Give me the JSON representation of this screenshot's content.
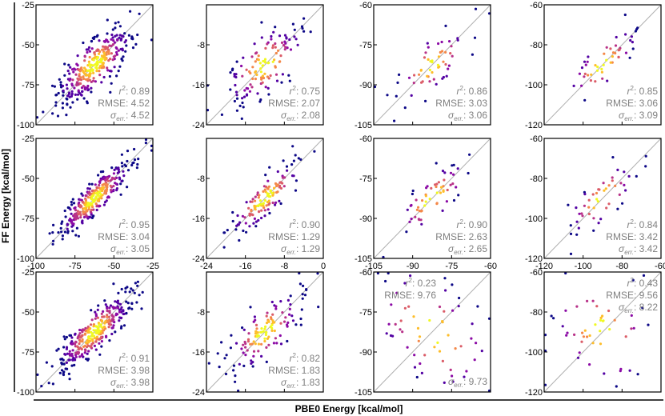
{
  "figure": {
    "ylabel": "FF Energy [kcal/mol]",
    "xlabel": "PBE0 Energy [kcal/mol]"
  },
  "colormap": [
    "#0d0887",
    "#5302a3",
    "#8b0aa5",
    "#b83289",
    "#db5c68",
    "#f48849",
    "#febd2a",
    "#f0f921"
  ],
  "stat_labels": {
    "r2": "r",
    "r2_sup": "2",
    "r2_colon": ":",
    "rmse": "RMSE:",
    "sigma": "σ",
    "sigma_sub": "err.",
    "sigma_colon": ":"
  },
  "chart_data": [
    {
      "type": "scatter",
      "row": 0,
      "col": 0,
      "xlim": [
        -100,
        -25
      ],
      "ylim": [
        -100,
        -25
      ],
      "yticks": [
        "-25",
        "-50",
        "-75",
        "-100"
      ],
      "xticks": [],
      "n": 320,
      "spread": 0.055,
      "stats": {
        "r2": "0.89",
        "rmse": "4.52",
        "sigma": "4.52"
      }
    },
    {
      "type": "scatter",
      "row": 0,
      "col": 1,
      "xlim": [
        -24,
        0
      ],
      "ylim": [
        -24,
        0
      ],
      "yticks": [
        "-8",
        "-16",
        "-24"
      ],
      "xticks": [],
      "n": 130,
      "spread": 0.07,
      "stats": {
        "r2": "0.75",
        "rmse": "2.07",
        "sigma": "2.08"
      }
    },
    {
      "type": "scatter",
      "row": 0,
      "col": 2,
      "xlim": [
        -105,
        -60
      ],
      "ylim": [
        -105,
        -60
      ],
      "yticks": [
        "-60",
        "-75",
        "-90",
        "-105"
      ],
      "xticks": [],
      "n": 60,
      "spread": 0.06,
      "stats": {
        "r2": "0.86",
        "rmse": "3.03",
        "sigma": "3.06"
      }
    },
    {
      "type": "scatter",
      "row": 0,
      "col": 3,
      "xlim": [
        -120,
        -60
      ],
      "ylim": [
        -120,
        -60
      ],
      "yticks": [
        "-60",
        "-80",
        "-100",
        "-120"
      ],
      "xticks": [],
      "n": 50,
      "spread": 0.05,
      "stats": {
        "r2": "0.85",
        "rmse": "3.06",
        "sigma": "3.09"
      }
    },
    {
      "type": "scatter",
      "row": 1,
      "col": 0,
      "xlim": [
        -100,
        -25
      ],
      "ylim": [
        -100,
        -25
      ],
      "yticks": [
        "-25",
        "-50",
        "-75",
        "-100"
      ],
      "xticks": [
        "-100",
        "-75",
        "-50",
        "-25"
      ],
      "n": 320,
      "spread": 0.035,
      "stats": {
        "r2": "0.95",
        "rmse": "3.04",
        "sigma": "3.05"
      }
    },
    {
      "type": "scatter",
      "row": 1,
      "col": 1,
      "xlim": [
        -24,
        0
      ],
      "ylim": [
        -24,
        0
      ],
      "yticks": [
        "-8",
        "-16",
        "-24"
      ],
      "xticks": [
        "-24",
        "-16",
        "-8",
        "0"
      ],
      "n": 130,
      "spread": 0.04,
      "stats": {
        "r2": "0.90",
        "rmse": "1.29",
        "sigma": "1.29"
      }
    },
    {
      "type": "scatter",
      "row": 1,
      "col": 2,
      "xlim": [
        -105,
        -60
      ],
      "ylim": [
        -105,
        -60
      ],
      "yticks": [
        "-60",
        "-75",
        "-90",
        "-105"
      ],
      "xticks": [
        "-105",
        "-90",
        "-75",
        "-60"
      ],
      "n": 60,
      "spread": 0.05,
      "stats": {
        "r2": "0.90",
        "rmse": "2.63",
        "sigma": "2.65"
      }
    },
    {
      "type": "scatter",
      "row": 1,
      "col": 3,
      "xlim": [
        -120,
        -60
      ],
      "ylim": [
        -120,
        -60
      ],
      "yticks": [
        "-60",
        "-80",
        "-100",
        "-120"
      ],
      "xticks": [
        "-120",
        "-100",
        "-80",
        "-60"
      ],
      "n": 50,
      "spread": 0.05,
      "stats": {
        "r2": "0.84",
        "rmse": "3.42",
        "sigma": "3.42"
      }
    },
    {
      "type": "scatter",
      "row": 2,
      "col": 0,
      "xlim": [
        -100,
        -25
      ],
      "ylim": [
        -100,
        -25
      ],
      "yticks": [
        "-25",
        "-50",
        "-75",
        "-100"
      ],
      "xticks": [],
      "n": 320,
      "spread": 0.045,
      "stats": {
        "r2": "0.91",
        "rmse": "3.98",
        "sigma": "3.98"
      }
    },
    {
      "type": "scatter",
      "row": 2,
      "col": 1,
      "xlim": [
        -24,
        0
      ],
      "ylim": [
        -24,
        0
      ],
      "yticks": [
        "-8",
        "-16",
        "-24"
      ],
      "xticks": [],
      "n": 130,
      "spread": 0.06,
      "stats": {
        "r2": "0.82",
        "rmse": "1.83",
        "sigma": "1.83"
      }
    },
    {
      "type": "scatter",
      "row": 2,
      "col": 2,
      "xlim": [
        -105,
        -60
      ],
      "ylim": [
        -105,
        -60
      ],
      "yticks": [
        "-60",
        "-75",
        "-90",
        "-105"
      ],
      "xticks": [],
      "n": 60,
      "spread": 0.2,
      "stats": {
        "r2": "0.23",
        "rmse": "9.76",
        "sigma": "9.73"
      },
      "stat_layout": "split"
    },
    {
      "type": "scatter",
      "row": 2,
      "col": 3,
      "xlim": [
        -120,
        -60
      ],
      "ylim": [
        -120,
        -60
      ],
      "yticks": [
        "-60",
        "-80",
        "-100",
        "-120"
      ],
      "xticks": [],
      "n": 50,
      "spread": 0.16,
      "stats": {
        "r2": "0.43",
        "rmse": "9.56",
        "sigma": "8.22"
      },
      "stat_layout": "top"
    }
  ]
}
